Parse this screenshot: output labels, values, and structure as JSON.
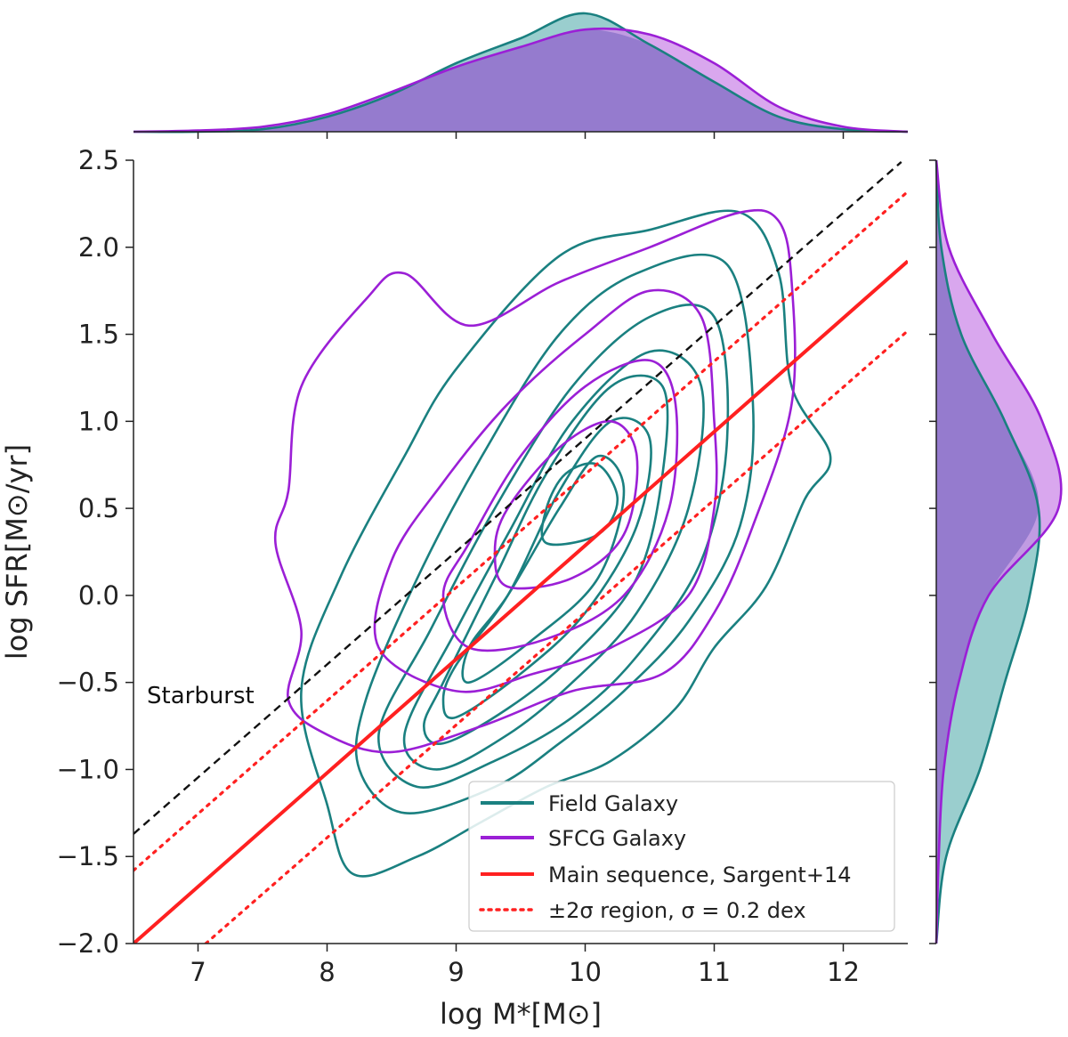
{
  "chart_data": {
    "type": "joint-kde",
    "xlabel": "log M*[M⊙]",
    "ylabel": "log SFR[M⊙/yr]",
    "xlim": [
      6.5,
      12.5
    ],
    "ylim": [
      -2.0,
      2.5
    ],
    "xticks": [
      7,
      8,
      9,
      10,
      11,
      12
    ],
    "yticks": [
      -2.0,
      -1.5,
      -1.0,
      -0.5,
      0.0,
      0.5,
      1.0,
      1.5,
      2.0,
      2.5
    ],
    "xtick_labels": [
      "7",
      "8",
      "9",
      "10",
      "11",
      "12"
    ],
    "ytick_labels": [
      "−2.0",
      "−1.5",
      "−1.0",
      "−0.5",
      "0.0",
      "0.5",
      "1.0",
      "1.5",
      "2.0",
      "2.5"
    ],
    "annotation": "Starburst",
    "colors": {
      "field": "#1a8080",
      "sfcg": "#9b1fd6",
      "main_sequence": "#ff2020",
      "starburst": "#111111",
      "field_fill": "#8fc9c9",
      "sfcg_fill": "#cc8ae8",
      "overlap_fill": "#957bce"
    },
    "lines": {
      "main_sequence": {
        "label": "Main sequence, Sargent+14",
        "x": [
          6.5,
          12.5
        ],
        "y": [
          -2.0,
          1.92
        ]
      },
      "sigma_upper": {
        "label": "±2σ region, σ = 0.2 dex",
        "x": [
          6.5,
          12.5
        ],
        "y": [
          -1.58,
          2.32
        ]
      },
      "sigma_lower": {
        "label": "",
        "x": [
          7.06,
          12.5
        ],
        "y": [
          -2.0,
          1.52
        ]
      },
      "starburst": {
        "label": "",
        "x": [
          6.5,
          12.45
        ],
        "y": [
          -1.37,
          2.49
        ]
      }
    },
    "legend": {
      "position": "lower-right",
      "entries": [
        "Field Galaxy",
        "SFCG Galaxy",
        "Main sequence, Sargent+14",
        "±2σ region, σ = 0.2 dex"
      ]
    },
    "field_contours": [
      {
        "level": 1,
        "points": [
          [
            8.0,
            -1.2
          ],
          [
            8.2,
            -1.6
          ],
          [
            8.7,
            -1.5
          ],
          [
            9.2,
            -1.3
          ],
          [
            9.7,
            -1.1
          ],
          [
            10.2,
            -0.95
          ],
          [
            10.7,
            -0.65
          ],
          [
            11.0,
            -0.3
          ],
          [
            11.4,
            0.05
          ],
          [
            11.7,
            0.55
          ],
          [
            11.9,
            0.8
          ],
          [
            11.6,
            1.2
          ],
          [
            11.5,
            1.85
          ],
          [
            11.2,
            2.2
          ],
          [
            10.5,
            2.1
          ],
          [
            9.8,
            1.95
          ],
          [
            9.0,
            1.3
          ],
          [
            8.6,
            0.8
          ],
          [
            8.1,
            0.1
          ],
          [
            7.8,
            -0.55
          ]
        ]
      },
      {
        "level": 2,
        "points": [
          [
            8.6,
            -1.25
          ],
          [
            9.3,
            -1.1
          ],
          [
            9.8,
            -0.85
          ],
          [
            10.3,
            -0.55
          ],
          [
            10.8,
            -0.15
          ],
          [
            11.2,
            0.4
          ],
          [
            11.3,
            1.1
          ],
          [
            11.1,
            1.9
          ],
          [
            10.4,
            1.85
          ],
          [
            9.8,
            1.5
          ],
          [
            9.2,
            0.8
          ],
          [
            8.7,
            0.1
          ],
          [
            8.3,
            -0.6
          ],
          [
            8.25,
            -1.0
          ]
        ]
      },
      {
        "level": 3,
        "points": [
          [
            8.7,
            -1.1
          ],
          [
            9.3,
            -0.95
          ],
          [
            9.9,
            -0.7
          ],
          [
            10.4,
            -0.35
          ],
          [
            10.9,
            0.2
          ],
          [
            11.1,
            0.9
          ],
          [
            11.0,
            1.6
          ],
          [
            10.5,
            1.6
          ],
          [
            9.9,
            1.2
          ],
          [
            9.3,
            0.5
          ],
          [
            8.8,
            -0.2
          ],
          [
            8.4,
            -0.8
          ]
        ]
      },
      {
        "level": 4,
        "points": [
          [
            8.85,
            -1.0
          ],
          [
            9.4,
            -0.8
          ],
          [
            9.9,
            -0.5
          ],
          [
            10.4,
            -0.1
          ],
          [
            10.8,
            0.5
          ],
          [
            10.9,
            1.2
          ],
          [
            10.5,
            1.4
          ],
          [
            9.9,
            1.0
          ],
          [
            9.4,
            0.35
          ],
          [
            9.0,
            -0.2
          ],
          [
            8.6,
            -0.8
          ]
        ]
      },
      {
        "level": 5,
        "points": [
          [
            8.9,
            -0.85
          ],
          [
            9.4,
            -0.65
          ],
          [
            9.9,
            -0.35
          ],
          [
            10.4,
            0.1
          ],
          [
            10.6,
            0.7
          ],
          [
            10.6,
            1.2
          ],
          [
            10.2,
            1.2
          ],
          [
            9.7,
            0.7
          ],
          [
            9.3,
            0.1
          ],
          [
            8.9,
            -0.5
          ],
          [
            8.75,
            -0.75
          ]
        ]
      },
      {
        "level": 6,
        "points": [
          [
            9.0,
            -0.7
          ],
          [
            9.5,
            -0.45
          ],
          [
            10.0,
            -0.1
          ],
          [
            10.4,
            0.4
          ],
          [
            10.5,
            0.9
          ],
          [
            10.2,
            1.0
          ],
          [
            9.8,
            0.6
          ],
          [
            9.4,
            0.0
          ],
          [
            9.0,
            -0.4
          ],
          [
            8.9,
            -0.6
          ]
        ]
      },
      {
        "level": 7,
        "points": [
          [
            9.1,
            -0.5
          ],
          [
            9.6,
            -0.25
          ],
          [
            10.1,
            0.1
          ],
          [
            10.3,
            0.6
          ],
          [
            10.1,
            0.8
          ],
          [
            9.8,
            0.5
          ],
          [
            9.4,
            0.0
          ],
          [
            9.1,
            -0.3
          ]
        ]
      },
      {
        "level": 8,
        "points": [
          [
            9.7,
            0.3
          ],
          [
            10.1,
            0.35
          ],
          [
            10.25,
            0.55
          ],
          [
            10.1,
            0.75
          ],
          [
            9.85,
            0.7
          ],
          [
            9.7,
            0.5
          ]
        ]
      }
    ],
    "sfcg_contours": [
      {
        "level": 1,
        "points": [
          [
            7.8,
            -0.2
          ],
          [
            7.7,
            -0.6
          ],
          [
            8.0,
            -0.8
          ],
          [
            8.5,
            -0.9
          ],
          [
            9.2,
            -0.75
          ],
          [
            9.9,
            -0.55
          ],
          [
            10.6,
            -0.45
          ],
          [
            11.0,
            -0.1
          ],
          [
            11.3,
            0.4
          ],
          [
            11.6,
            1.1
          ],
          [
            11.6,
            1.8
          ],
          [
            11.5,
            2.15
          ],
          [
            11.2,
            2.2
          ],
          [
            10.5,
            2.0
          ],
          [
            9.8,
            1.8
          ],
          [
            9.1,
            1.55
          ],
          [
            8.6,
            1.85
          ],
          [
            8.3,
            1.7
          ],
          [
            7.8,
            1.2
          ],
          [
            7.7,
            0.6
          ],
          [
            7.6,
            0.3
          ]
        ]
      },
      {
        "level": 2,
        "points": [
          [
            8.4,
            -0.3
          ],
          [
            9.0,
            -0.55
          ],
          [
            9.6,
            -0.45
          ],
          [
            10.2,
            -0.3
          ],
          [
            10.8,
            0.0
          ],
          [
            11.0,
            0.5
          ],
          [
            11.0,
            1.0
          ],
          [
            10.9,
            1.6
          ],
          [
            10.5,
            1.75
          ],
          [
            10.0,
            1.5
          ],
          [
            9.4,
            1.1
          ],
          [
            8.9,
            0.65
          ],
          [
            8.5,
            0.2
          ]
        ]
      },
      {
        "level": 3,
        "points": [
          [
            9.1,
            -0.3
          ],
          [
            9.7,
            -0.25
          ],
          [
            10.3,
            0.0
          ],
          [
            10.65,
            0.5
          ],
          [
            10.7,
            1.1
          ],
          [
            10.5,
            1.35
          ],
          [
            10.0,
            1.2
          ],
          [
            9.5,
            0.8
          ],
          [
            9.1,
            0.3
          ],
          [
            8.9,
            0.0
          ]
        ]
      },
      {
        "level": 4,
        "points": [
          [
            9.4,
            0.05
          ],
          [
            9.9,
            0.1
          ],
          [
            10.3,
            0.35
          ],
          [
            10.4,
            0.8
          ],
          [
            10.2,
            1.0
          ],
          [
            9.8,
            0.85
          ],
          [
            9.4,
            0.5
          ],
          [
            9.3,
            0.25
          ]
        ]
      }
    ],
    "top_marginal": {
      "x": [
        6.5,
        7.0,
        7.5,
        8.0,
        8.5,
        9.0,
        9.5,
        10.0,
        10.5,
        11.0,
        11.5,
        12.0,
        12.5
      ],
      "field": [
        0.0,
        0.0,
        0.02,
        0.12,
        0.3,
        0.55,
        0.75,
        0.95,
        0.7,
        0.4,
        0.12,
        0.02,
        0.0
      ],
      "sfcg": [
        0.0,
        0.01,
        0.04,
        0.14,
        0.32,
        0.52,
        0.68,
        0.82,
        0.78,
        0.55,
        0.2,
        0.04,
        0.0
      ]
    },
    "right_marginal": {
      "y": [
        -2.0,
        -1.5,
        -1.0,
        -0.5,
        0.0,
        0.5,
        1.0,
        1.5,
        2.0,
        2.5
      ],
      "field": [
        0.0,
        0.08,
        0.35,
        0.55,
        0.75,
        0.82,
        0.55,
        0.2,
        0.04,
        0.0
      ],
      "sfcg": [
        0.0,
        0.02,
        0.06,
        0.18,
        0.42,
        0.98,
        0.85,
        0.45,
        0.1,
        0.0
      ]
    }
  }
}
